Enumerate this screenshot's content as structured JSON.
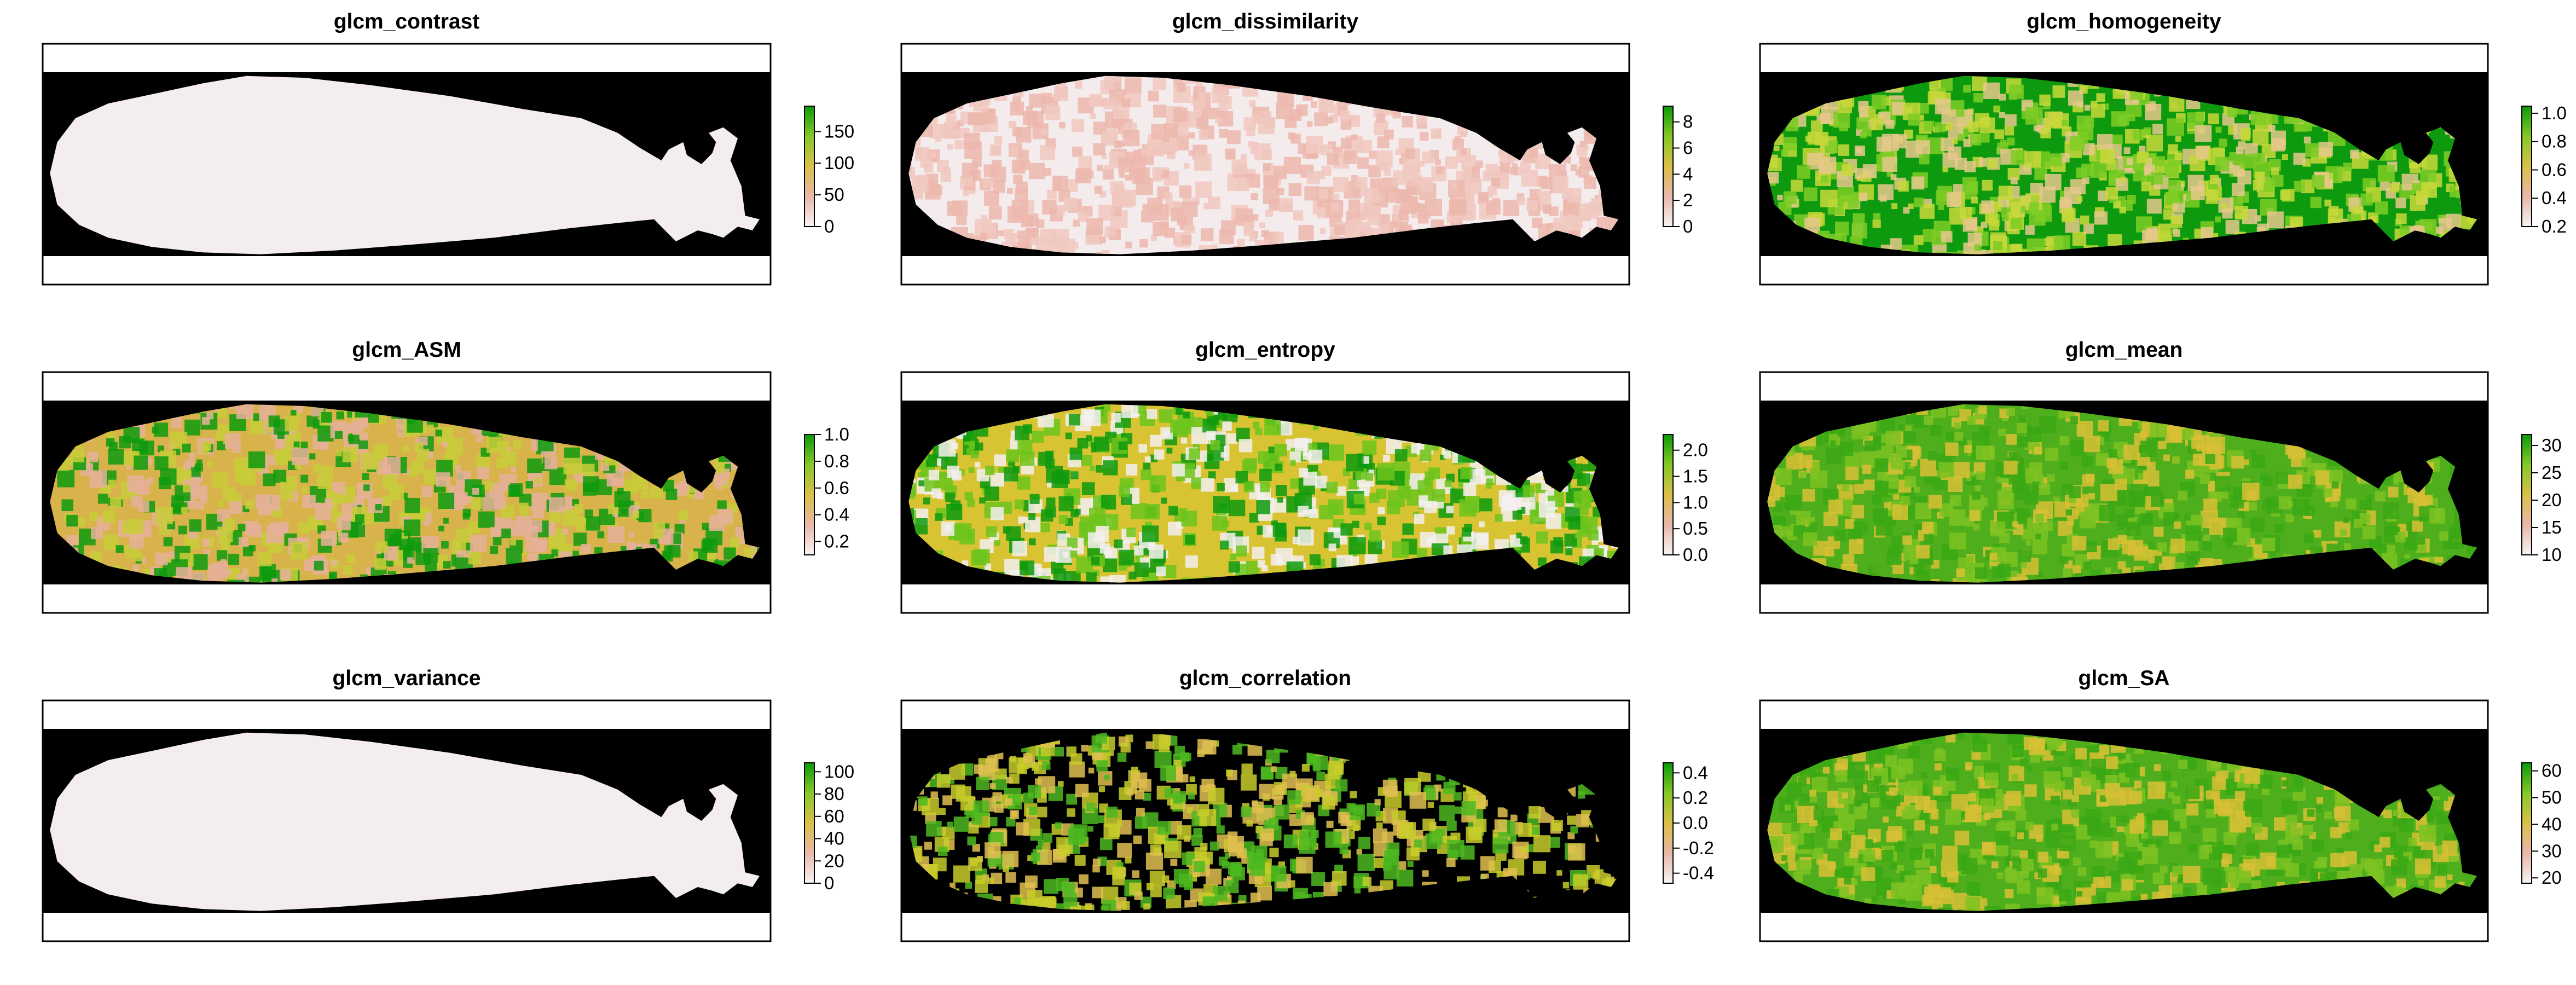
{
  "chart_data": [
    {
      "type": "heatmap",
      "title": "glcm_contrast",
      "colorbar": {
        "ticks": [
          "0",
          "50",
          "100",
          "150"
        ],
        "values": [
          0,
          50,
          100,
          150
        ],
        "min": 0,
        "max": 190
      },
      "fill": "#f3eded",
      "mottle": []
    },
    {
      "type": "heatmap",
      "title": "glcm_dissimilarity",
      "colorbar": {
        "ticks": [
          "0",
          "2",
          "4",
          "6",
          "8"
        ],
        "values": [
          0,
          2,
          4,
          6,
          8
        ],
        "min": 0,
        "max": 9.2
      },
      "fill": "#f4ecec",
      "mottle": [
        "#f0c8c0",
        "#ecb7ad"
      ]
    },
    {
      "type": "heatmap",
      "title": "glcm_homogeneity",
      "colorbar": {
        "ticks": [
          "0.2",
          "0.4",
          "0.6",
          "0.8",
          "1.0"
        ],
        "values": [
          0.2,
          0.4,
          0.6,
          0.8,
          1.0
        ],
        "min": 0.2,
        "max": 1.05
      },
      "fill": "#0e9a0e",
      "mottle": [
        "#7ccc24",
        "#c8d83a",
        "#e6c88c"
      ]
    },
    {
      "type": "heatmap",
      "title": "glcm_ASM",
      "colorbar": {
        "ticks": [
          "0.2",
          "0.4",
          "0.6",
          "0.8",
          "1.0"
        ],
        "values": [
          0.2,
          0.4,
          0.6,
          0.8,
          1.0
        ],
        "min": 0.1,
        "max": 1.0
      },
      "fill": "#d8b24a",
      "mottle": [
        "#0e9a0e",
        "#e6b09a",
        "#c8cc3a"
      ]
    },
    {
      "type": "heatmap",
      "title": "glcm_entropy",
      "colorbar": {
        "ticks": [
          "0.0",
          "0.5",
          "1.0",
          "1.5",
          "2.0"
        ],
        "values": [
          0,
          0.5,
          1.0,
          1.5,
          2.0
        ],
        "min": 0,
        "max": 2.3
      },
      "fill": "#d8c432",
      "mottle": [
        "#f3f0f0",
        "#6cc41c",
        "#0e9a0e"
      ]
    },
    {
      "type": "heatmap",
      "title": "glcm_mean",
      "colorbar": {
        "ticks": [
          "10",
          "15",
          "20",
          "25",
          "30"
        ],
        "values": [
          10,
          15,
          20,
          25,
          30
        ],
        "min": 10,
        "max": 32
      },
      "fill": "#4fae1c",
      "mottle": [
        "#3aa814",
        "#7cc222",
        "#d8c035"
      ]
    },
    {
      "type": "heatmap",
      "title": "glcm_variance",
      "colorbar": {
        "ticks": [
          "0",
          "20",
          "40",
          "60",
          "80",
          "100"
        ],
        "values": [
          0,
          20,
          40,
          60,
          80,
          100
        ],
        "min": 0,
        "max": 108
      },
      "fill": "#f3eded",
      "mottle": []
    },
    {
      "type": "heatmap",
      "title": "glcm_correlation",
      "colorbar": {
        "ticks": [
          "-0.4",
          "-0.2",
          "0.0",
          "0.2",
          "0.4"
        ],
        "values": [
          -0.4,
          -0.2,
          0,
          0.2,
          0.4
        ],
        "min": -0.48,
        "max": 0.48
      },
      "fill": "#000000",
      "mottle": [
        "#c8cc2a",
        "#e0c050",
        "#4cb820"
      ]
    },
    {
      "type": "heatmap",
      "title": "glcm_SA",
      "colorbar": {
        "ticks": [
          "20",
          "30",
          "40",
          "50",
          "60"
        ],
        "values": [
          20,
          30,
          40,
          50,
          60
        ],
        "min": 18,
        "max": 63
      },
      "fill": "#4fae1c",
      "mottle": [
        "#3aa814",
        "#7cc222",
        "#d8c035"
      ]
    }
  ],
  "colors": {
    "background": "#000000",
    "frame": "#000000"
  }
}
